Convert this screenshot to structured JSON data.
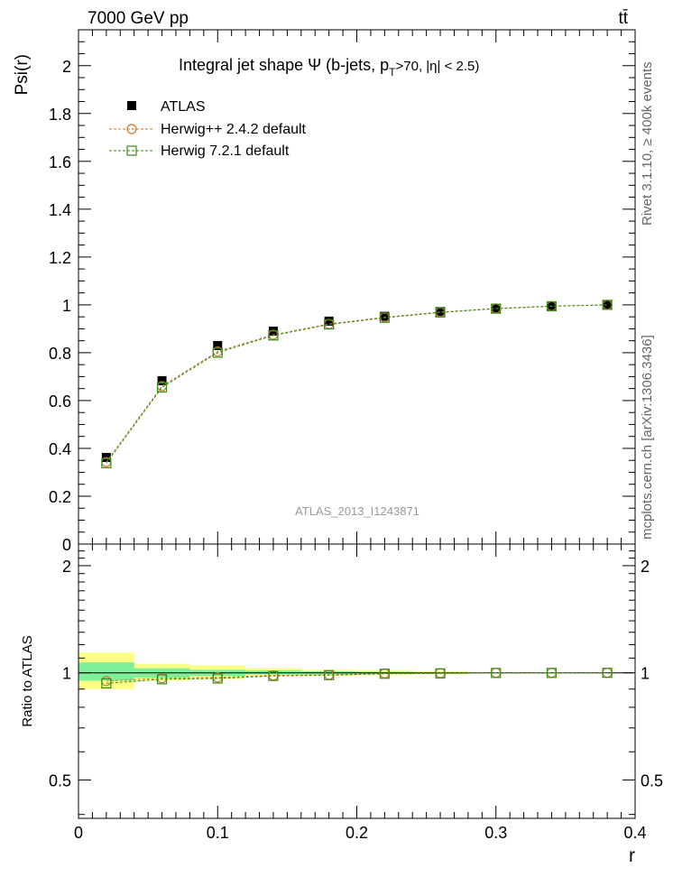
{
  "header": {
    "left": "7000 GeV pp",
    "right": "tt̄"
  },
  "side_labels": {
    "upper": "Rivet 3.1.10, ≥ 400k events",
    "lower": "mcplots.cern.ch [arXiv:1306.3436]"
  },
  "chart_data": [
    {
      "type": "scatter",
      "title": "Integral jet shape  Ψ (b-jets, p",
      "title_sub": "T",
      "title_tail": ">70, |η| < 2.5)",
      "watermark": "ATLAS_2013_I1243871",
      "xlabel": "",
      "ylabel": "Psi(r)",
      "xlim": [
        0,
        0.4
      ],
      "ylim": [
        0,
        2.15
      ],
      "yticks": [
        0,
        0.2,
        0.4,
        0.6,
        0.8,
        1,
        1.2,
        1.4,
        1.6,
        1.8,
        2
      ],
      "ytick_labels": [
        "0",
        "0.2",
        "0.4",
        "0.6",
        "0.8",
        "1",
        "1.2",
        "1.4",
        "1.6",
        "1.8",
        "2"
      ],
      "legend_position": "top-left",
      "x": [
        0.02,
        0.06,
        0.1,
        0.14,
        0.18,
        0.22,
        0.26,
        0.3,
        0.34,
        0.38
      ],
      "series": [
        {
          "name": "ATLAS",
          "marker": "filled-square",
          "color": "#000000",
          "values": [
            0.362,
            0.683,
            0.83,
            0.89,
            0.932,
            0.952,
            0.972,
            0.985,
            0.995,
            1.0
          ]
        },
        {
          "name": "Herwig++ 2.4.2 default",
          "marker": "open-circle",
          "color": "#c87a2e",
          "values": [
            0.343,
            0.66,
            0.805,
            0.875,
            0.92,
            0.948,
            0.97,
            0.985,
            0.995,
            1.0
          ]
        },
        {
          "name": "Herwig 7.2.1 default",
          "marker": "open-square",
          "color": "#3a8a1a",
          "values": [
            0.338,
            0.655,
            0.8,
            0.872,
            0.918,
            0.946,
            0.968,
            0.984,
            0.994,
            1.0
          ]
        }
      ]
    },
    {
      "type": "scatter",
      "xlabel": "r",
      "ylabel": "Ratio to ATLAS",
      "xlim": [
        0,
        0.4
      ],
      "ylim": [
        0.39,
        2.3
      ],
      "log_y": true,
      "xticks": [
        0,
        0.1,
        0.2,
        0.3,
        0.4
      ],
      "xtick_labels": [
        "0",
        "0.1",
        "0.2",
        "0.3",
        "0.4"
      ],
      "yticks": [
        0.5,
        1,
        2
      ],
      "ytick_labels": [
        "0.5",
        "1",
        "2"
      ],
      "x": [
        0.02,
        0.06,
        0.1,
        0.14,
        0.18,
        0.22,
        0.26,
        0.3,
        0.34,
        0.38
      ],
      "bands": {
        "edges": [
          0,
          0.04,
          0.08,
          0.12,
          0.16,
          0.2,
          0.24,
          0.28
        ],
        "yellow": [
          [
            0.9,
            1.14
          ],
          [
            0.95,
            1.06
          ],
          [
            0.96,
            1.05
          ],
          [
            0.98,
            1.03
          ],
          [
            0.98,
            1.02
          ],
          [
            0.985,
            1.015
          ],
          [
            0.99,
            1.01
          ]
        ],
        "green": [
          [
            0.95,
            1.07
          ],
          [
            0.97,
            1.03
          ],
          [
            0.98,
            1.02
          ],
          [
            0.99,
            1.015
          ],
          [
            0.99,
            1.01
          ],
          [
            0.993,
            1.007
          ],
          [
            0.995,
            1.005
          ]
        ]
      },
      "series": [
        {
          "name": "Herwig++ 2.4.2 default",
          "marker": "open-circle",
          "color": "#c87a2e",
          "values": [
            0.948,
            0.966,
            0.97,
            0.983,
            0.987,
            0.996,
            0.998,
            1.0,
            1.0,
            1.0
          ]
        },
        {
          "name": "Herwig 7.2.1 default",
          "marker": "open-square",
          "color": "#3a8a1a",
          "values": [
            0.934,
            0.959,
            0.964,
            0.98,
            0.985,
            0.994,
            0.996,
            0.999,
            0.999,
            1.0
          ]
        }
      ]
    }
  ]
}
